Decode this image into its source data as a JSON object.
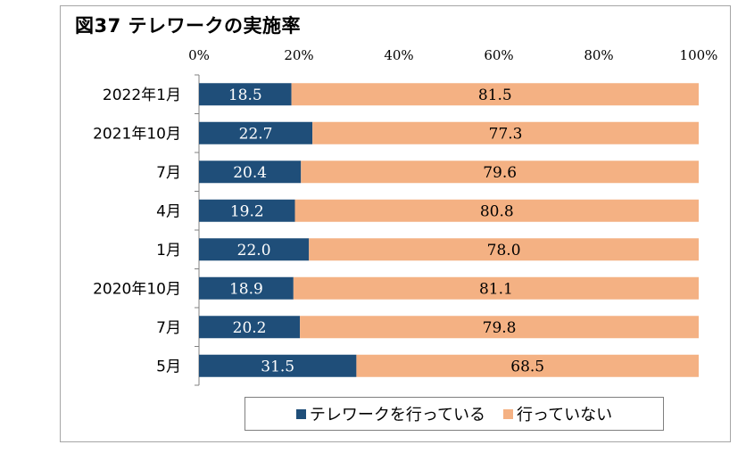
{
  "title": "図37 テレワークの実施率",
  "colors": {
    "series1": "#1f4e79",
    "series2": "#f4b183",
    "axis": "#808080"
  },
  "chart_data": {
    "type": "bar",
    "orientation": "horizontal",
    "stacked": true,
    "title": "図37 テレワークの実施率",
    "categories": [
      "2022年1月",
      "2021年10月",
      "7月",
      "4月",
      "1月",
      "2020年10月",
      "7月",
      "5月"
    ],
    "series": [
      {
        "name": "テレワークを行っている",
        "color": "#1f4e79",
        "values": [
          18.5,
          22.7,
          20.4,
          19.2,
          22.0,
          18.9,
          20.2,
          31.5
        ]
      },
      {
        "name": "行っていない",
        "color": "#f4b183",
        "values": [
          81.5,
          77.3,
          79.6,
          80.8,
          78.0,
          81.1,
          79.8,
          68.5
        ]
      }
    ],
    "value_labels": [
      [
        "18.5",
        "22.7",
        "20.4",
        "19.2",
        "22.0",
        "18.9",
        "20.2",
        "31.5"
      ],
      [
        "81.5",
        "77.3",
        "79.6",
        "80.8",
        "78.0",
        "81.1",
        "79.8",
        "68.5"
      ]
    ],
    "x_ticks": [
      "0%",
      "20%",
      "40%",
      "60%",
      "80%",
      "100%"
    ],
    "xlim": [
      0,
      100
    ],
    "grid": false,
    "legend_position": "bottom"
  }
}
